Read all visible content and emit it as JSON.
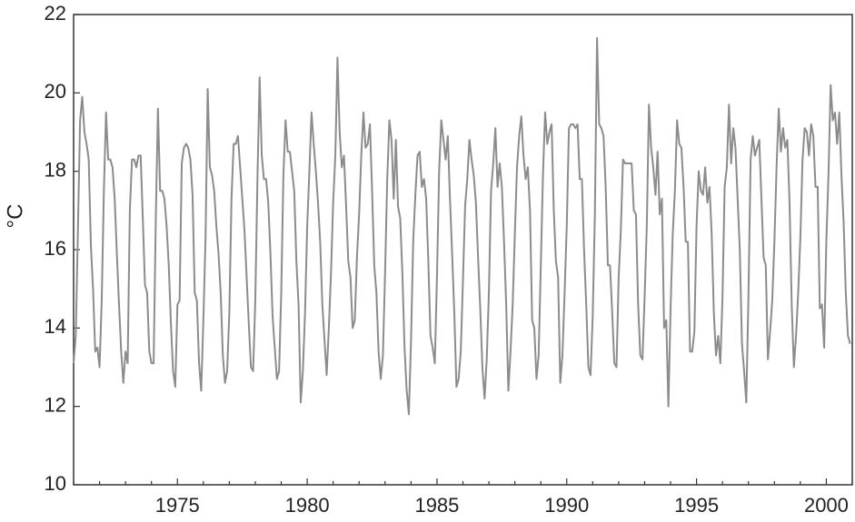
{
  "chart_data": {
    "type": "line",
    "title": "",
    "xlabel": "",
    "ylabel": "°C",
    "xlim": [
      1971.0,
      2001.0
    ],
    "ylim": [
      10,
      22
    ],
    "x_ticks": [
      1975,
      1980,
      1985,
      1990,
      1995,
      2000
    ],
    "x_tick_labels": [
      "1975",
      "1980",
      "1985",
      "1990",
      "1995",
      "2000"
    ],
    "y_ticks": [
      10,
      12,
      14,
      16,
      18,
      20,
      22
    ],
    "y_tick_labels": [
      "10",
      "12",
      "14",
      "16",
      "18",
      "20",
      "22"
    ],
    "grid": false,
    "legend": "none",
    "line_color": "#8c8c8c",
    "frequency": "monthly",
    "x_start": 1971.0,
    "series": [
      {
        "values": [
          13.1,
          13.8,
          16.5,
          19.3,
          19.9,
          19.0,
          18.7,
          18.3,
          16.1,
          15.0,
          13.4,
          13.5,
          13.0,
          14.7,
          17.5,
          19.5,
          18.3,
          18.3,
          18.1,
          17.3,
          15.9,
          14.6,
          13.4,
          12.6,
          13.4,
          13.1,
          17.0,
          18.3,
          18.3,
          18.1,
          18.4,
          18.4,
          16.8,
          15.1,
          14.9,
          13.4,
          13.1,
          13.1,
          16.8,
          19.6,
          17.5,
          17.5,
          17.3,
          16.6,
          15.6,
          14.1,
          12.9,
          12.5,
          14.6,
          14.7,
          18.2,
          18.6,
          18.7,
          18.6,
          18.3,
          17.4,
          14.9,
          14.7,
          13.1,
          12.4,
          14.2,
          16.3,
          20.1,
          18.1,
          17.9,
          17.5,
          16.6,
          15.9,
          14.9,
          13.3,
          12.6,
          12.9,
          14.4,
          17.3,
          18.7,
          18.7,
          18.9,
          18.1,
          17.3,
          16.5,
          15.3,
          14.1,
          13.0,
          12.9,
          14.7,
          17.8,
          20.4,
          18.4,
          17.8,
          17.8,
          17.2,
          15.9,
          14.3,
          13.5,
          12.7,
          12.9,
          14.9,
          17.9,
          19.3,
          18.5,
          18.5,
          18.0,
          17.5,
          15.7,
          14.6,
          12.1,
          12.9,
          14.4,
          16.6,
          18.0,
          19.5,
          18.7,
          18.0,
          17.2,
          16.2,
          14.6,
          13.7,
          12.8,
          14.0,
          15.4,
          17.2,
          18.4,
          20.9,
          19.0,
          18.1,
          18.4,
          17.1,
          15.7,
          15.3,
          14.0,
          14.2,
          15.8,
          16.9,
          18.4,
          19.5,
          18.6,
          18.7,
          19.2,
          17.5,
          15.6,
          14.9,
          13.4,
          12.7,
          13.3,
          15.4,
          17.8,
          19.3,
          18.8,
          17.3,
          18.8,
          17.1,
          16.8,
          15.4,
          13.5,
          12.4,
          11.8,
          13.7,
          16.2,
          17.4,
          18.4,
          18.5,
          17.6,
          17.8,
          17.3,
          15.7,
          13.8,
          13.5,
          13.1,
          15.3,
          18.0,
          19.3,
          18.8,
          18.3,
          18.9,
          17.3,
          15.9,
          14.4,
          12.5,
          12.7,
          13.4,
          15.2,
          17.1,
          17.8,
          18.8,
          18.3,
          17.9,
          17.2,
          15.8,
          14.5,
          13.0,
          12.2,
          13.2,
          14.9,
          17.5,
          18.2,
          19.1,
          17.6,
          18.2,
          17.6,
          16.2,
          14.6,
          12.4,
          13.4,
          14.6,
          16.4,
          18.1,
          18.9,
          19.4,
          18.4,
          17.8,
          18.1,
          17.0,
          14.2,
          14.0,
          12.7,
          13.3,
          15.6,
          17.9,
          19.5,
          18.7,
          19.0,
          19.2,
          17.0,
          15.7,
          15.3,
          12.6,
          13.3,
          14.9,
          16.6,
          19.1,
          19.2,
          19.2,
          19.1,
          19.2,
          17.8,
          17.8,
          16.0,
          14.6,
          13.0,
          12.8,
          14.3,
          16.9,
          21.4,
          19.2,
          19.1,
          18.9,
          17.6,
          15.6,
          15.6,
          14.4,
          13.1,
          13.0,
          15.3,
          16.5,
          18.3,
          18.2,
          18.2,
          18.2,
          18.2,
          17.0,
          16.9,
          14.6,
          13.3,
          13.2,
          14.8,
          16.6,
          19.7,
          18.6,
          18.1,
          17.4,
          18.5,
          16.9,
          17.3,
          14.0,
          14.2,
          12.0,
          14.5,
          16.4,
          17.5,
          19.3,
          18.7,
          18.6,
          17.6,
          16.2,
          16.2,
          13.4,
          13.4,
          13.9,
          16.6,
          18.0,
          17.5,
          17.4,
          18.1,
          17.2,
          17.6,
          16.4,
          14.4,
          13.3,
          13.8,
          13.1,
          14.8,
          17.6,
          18.1,
          19.7,
          18.2,
          19.1,
          18.6,
          17.3,
          16.0,
          13.6,
          12.9,
          12.1,
          14.8,
          18.3,
          18.9,
          18.4,
          18.6,
          18.8,
          17.3,
          15.8,
          15.6,
          13.2,
          13.9,
          14.7,
          16.2,
          18.1,
          19.6,
          18.5,
          19.1,
          18.6,
          18.8,
          17.2,
          14.6,
          13.0,
          13.8,
          14.9,
          16.3,
          18.3,
          19.1,
          19.0,
          18.4,
          19.2,
          18.9,
          17.6,
          17.6,
          14.5,
          14.6,
          13.5,
          16.2,
          17.9,
          20.2,
          19.3,
          19.5,
          18.7,
          19.5,
          17.9,
          16.7,
          14.9,
          13.8,
          13.6
        ]
      }
    ]
  }
}
